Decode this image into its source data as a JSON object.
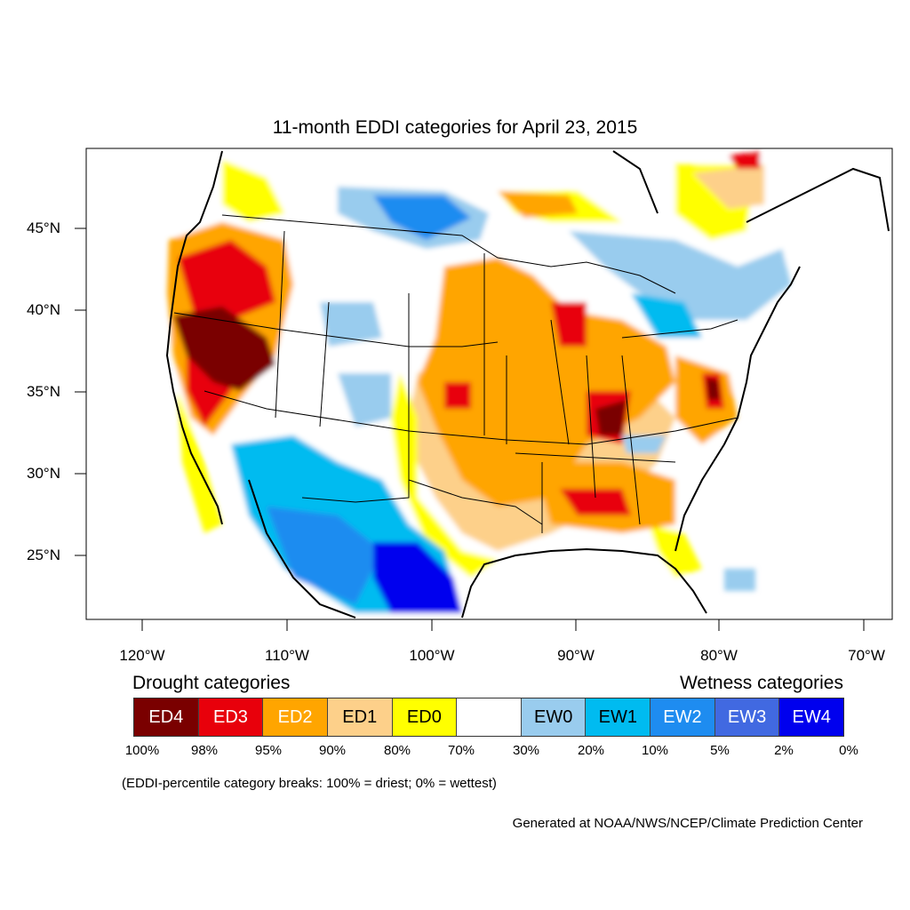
{
  "title": "11-month EDDI categories for April 23, 2015",
  "lat_labels": [
    "45°N",
    "40°N",
    "35°N",
    "30°N",
    "25°N"
  ],
  "lon_labels": [
    "120°W",
    "110°W",
    "100°W",
    "90°W",
    "80°W",
    "70°W"
  ],
  "legend": {
    "drought_title": "Drought categories",
    "wetness_title": "Wetness categories",
    "categories": [
      {
        "label": "ED4",
        "color": "#7a0000",
        "text_color": "#ffffff"
      },
      {
        "label": "ED3",
        "color": "#e8000b",
        "text_color": "#ffffff"
      },
      {
        "label": "ED2",
        "color": "#ffa500",
        "text_color": "#ffffff"
      },
      {
        "label": "ED1",
        "color": "#fdd08a",
        "text_color": "#000000"
      },
      {
        "label": "ED0",
        "color": "#ffff00",
        "text_color": "#000000"
      },
      {
        "label": "",
        "color": "#ffffff",
        "text_color": "#000000"
      },
      {
        "label": "EW0",
        "color": "#99ccee",
        "text_color": "#000000"
      },
      {
        "label": "EW1",
        "color": "#00bbf0",
        "text_color": "#000000"
      },
      {
        "label": "EW2",
        "color": "#1e8cf0",
        "text_color": "#ffffff"
      },
      {
        "label": "EW3",
        "color": "#4169e1",
        "text_color": "#ffffff"
      },
      {
        "label": "EW4",
        "color": "#0000ee",
        "text_color": "#ffffff"
      }
    ],
    "percent_breaks": [
      "100%",
      "98%",
      "95%",
      "90%",
      "80%",
      "70%",
      "30%",
      "20%",
      "10%",
      "5%",
      "2%",
      "0%"
    ]
  },
  "note": "(EDDI-percentile category breaks: 100% = driest; 0% = wettest)",
  "credit": "Generated at NOAA/NWS/NCEP/Climate Prediction Center"
}
